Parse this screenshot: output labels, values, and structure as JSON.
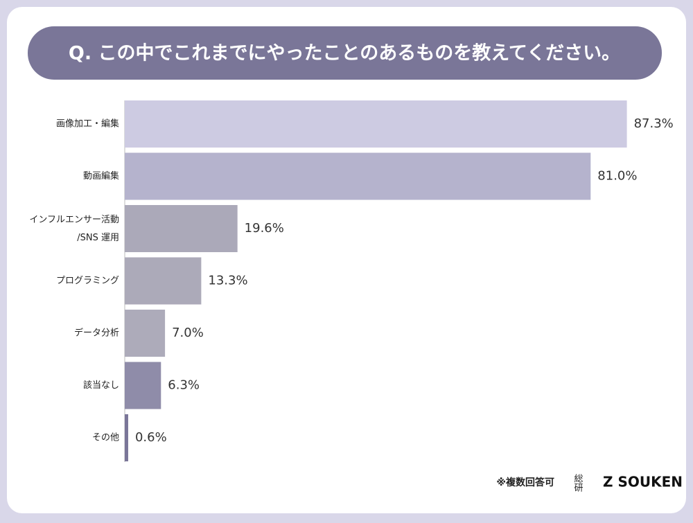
{
  "chart_data": {
    "type": "barh",
    "title": "Q. この中でこれまでにやったことのあるものを教えてください。",
    "categories": [
      "画像加工・編集",
      "動画編集",
      "インフルエンサー活動\n/SNS 運用",
      "プログラミング",
      "データ分析",
      "該当なし",
      "その他"
    ],
    "values": [
      87.3,
      81.0,
      19.6,
      13.3,
      7.0,
      6.3,
      0.6
    ],
    "value_labels": [
      "87.3%",
      "81.0%",
      "19.6%",
      "13.3%",
      "7.0%",
      "6.3%",
      "0.6%"
    ],
    "colors": [
      "#cdcbe2",
      "#b5b3cd",
      "#aba9b9",
      "#acaab9",
      "#adabba",
      "#8f8ca9",
      "#7a7698"
    ],
    "xlim": [
      0,
      100
    ],
    "note": "※複数回答可",
    "brand_mark": "総研",
    "brand": "Z SOUKEN"
  }
}
